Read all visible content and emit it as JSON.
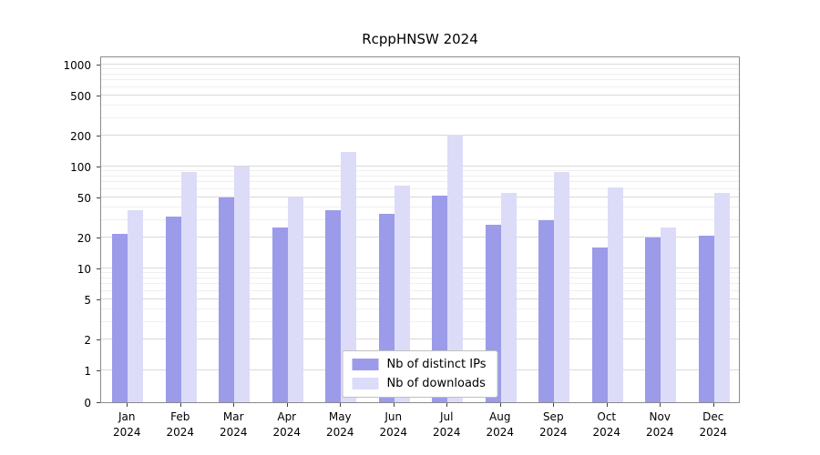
{
  "chart_data": {
    "type": "bar",
    "title": "RcppHNSW 2024",
    "y_scale": "symlog",
    "ylim": [
      0,
      1000
    ],
    "grid": true,
    "legend_position": "lower center",
    "y_ticks": [
      0,
      1,
      2,
      5,
      10,
      20,
      50,
      100,
      200,
      500,
      1000
    ],
    "y_minor_ticks": [
      3,
      4,
      6,
      7,
      8,
      9,
      30,
      40,
      60,
      70,
      80,
      90,
      300,
      400,
      600,
      700,
      800,
      900
    ],
    "categories": [
      "Jan 2024",
      "Feb 2024",
      "Mar 2024",
      "Apr 2024",
      "May 2024",
      "Jun 2024",
      "Jul 2024",
      "Aug 2024",
      "Sep 2024",
      "Oct 2024",
      "Nov 2024",
      "Dec 2024"
    ],
    "series": [
      {
        "name": "Nb of distinct IPs",
        "color": "#9b9bea",
        "values": [
          22,
          32,
          50,
          25,
          37,
          34,
          52,
          27,
          30,
          16,
          20,
          21
        ]
      },
      {
        "name": "Nb of downloads",
        "color": "#dcdcf8",
        "values": [
          37,
          88,
          100,
          50,
          140,
          65,
          205,
          55,
          88,
          62,
          25,
          55
        ]
      }
    ]
  }
}
